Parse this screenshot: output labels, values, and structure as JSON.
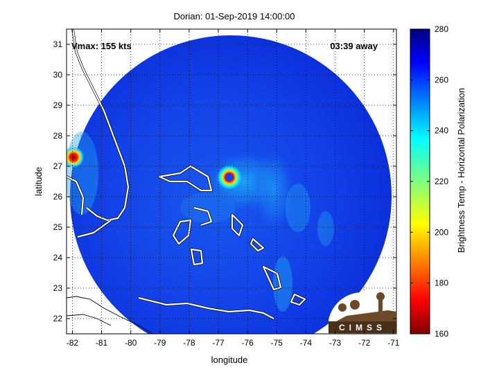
{
  "title": "Dorian: 01-Sep-2019 14:00:00",
  "vmax_label": "Vmax: 155 kts",
  "time_label": "03:39 away",
  "xlabel": "longitude",
  "ylabel": "latitude",
  "colorbar_label": "Brightness Temp - Horizontal Polarization",
  "logo_text": "CIMSS",
  "chart_data": {
    "type": "heatmap",
    "title": "Dorian: 01-Sep-2019 14:00:00",
    "xlabel": "longitude",
    "ylabel": "latitude",
    "xlim": [
      -82.2,
      -70.9
    ],
    "ylim": [
      21.5,
      31.5
    ],
    "x_ticks": [
      -82,
      -81,
      -80,
      -79,
      -78,
      -77,
      -76,
      -75,
      -74,
      -73,
      -72,
      -71
    ],
    "y_ticks": [
      22,
      23,
      24,
      25,
      26,
      27,
      28,
      29,
      30,
      31
    ],
    "colorbar": {
      "label": "Brightness Temp - Horizontal Polarization",
      "range": [
        160,
        280
      ],
      "ticks": [
        160,
        180,
        200,
        220,
        240,
        260,
        280
      ],
      "colormap": "jet"
    },
    "storm_center": {
      "lon": -76.5,
      "lat": 26.5
    },
    "swath": {
      "center_lon": -76.5,
      "center_lat": 26.5
    }
  }
}
